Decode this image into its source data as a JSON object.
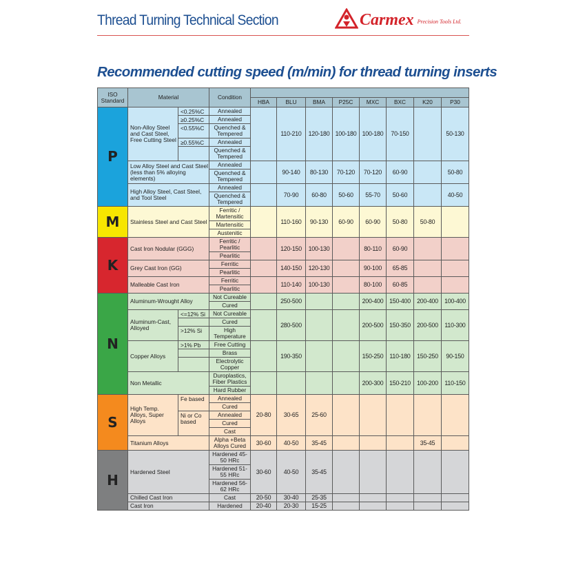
{
  "header": {
    "section_title": "Thread Turning Technical Section",
    "logo_brand": "Carmex",
    "logo_subtitle": "Precision Tools Ltd.",
    "heading": "Recommended cutting speed (m/min) for thread turning inserts"
  },
  "colors": {
    "title": "#1d4f91",
    "brand": "#d3232a",
    "header_bg": "#a8c5d1"
  },
  "table": {
    "headers": {
      "iso": "ISO Standard",
      "material": "Material",
      "condition": "Condition"
    },
    "grades": [
      "HBA",
      "BLU",
      "BMA",
      "P25C",
      "MXC",
      "BXC",
      "K20",
      "P30"
    ],
    "groups": [
      {
        "letter": "P",
        "color": "#1ba3dc",
        "bg": "#c9e7f6",
        "materials": [
          {
            "name": "Non-Alloy Steel and Cast Steel, Free Cutting Steel",
            "subs": [
              {
                "label": "<0.25%C",
                "conditions": [
                  "Annealed"
                ]
              },
              {
                "label": "≥0.25%C",
                "conditions": [
                  "Annealed"
                ]
              },
              {
                "label": "<0.55%C",
                "conditions": [
                  "Quenched & Tempered"
                ]
              },
              {
                "label": "≥0.55%C",
                "conditions": [
                  "Annealed"
                ]
              },
              {
                "label": "",
                "conditions": [
                  "Quenched & Tempered"
                ]
              }
            ],
            "speeds": [
              "",
              "110-210",
              "120-180",
              "100-180",
              "100-180",
              "70-150",
              "",
              "50-130"
            ]
          },
          {
            "name": "Low Alloy Steel and Cast Steel (less than 5% alloying elements)",
            "conditions": [
              "Annealed",
              "Quenched & Tempered"
            ],
            "speeds": [
              "",
              "90-140",
              "80-130",
              "70-120",
              "70-120",
              "60-90",
              "",
              "50-80"
            ]
          },
          {
            "name": "High Alloy Steel, Cast Steel, and Tool Steel",
            "conditions": [
              "Annealed",
              "Quenched & Tempered"
            ],
            "speeds": [
              "",
              "70-90",
              "60-80",
              "50-60",
              "55-70",
              "50-60",
              "",
              "40-50"
            ]
          }
        ]
      },
      {
        "letter": "M",
        "color": "#f7e600",
        "bg": "#fdf8d4",
        "materials": [
          {
            "name": "Stainless Steel and Cast Steel",
            "conditions": [
              "Ferritic / Martensitic",
              "Martensitic",
              "Austenitic"
            ],
            "speeds": [
              "",
              "110-160",
              "90-130",
              "60-90",
              "60-90",
              "50-80",
              "50-80",
              ""
            ]
          }
        ]
      },
      {
        "letter": "K",
        "color": "#d7262e",
        "bg": "#f2d0c9",
        "materials": [
          {
            "name": "Cast Iron Nodular (GGG)",
            "conditions": [
              "Ferritic / Pearlitic",
              "Pearlitic"
            ],
            "speeds": [
              "",
              "120-150",
              "100-130",
              "",
              "80-110",
              "60-90",
              "",
              ""
            ]
          },
          {
            "name": "Grey Cast Iron (GG)",
            "conditions": [
              "Ferritic",
              "Pearlitic"
            ],
            "speeds": [
              "",
              "140-150",
              "120-130",
              "",
              "90-100",
              "65-85",
              "",
              ""
            ]
          },
          {
            "name": "Malleable Cast Iron",
            "conditions": [
              "Ferritic",
              "Pearlitic"
            ],
            "speeds": [
              "",
              "110-140",
              "100-130",
              "",
              "80-100",
              "60-85",
              "",
              ""
            ]
          }
        ]
      },
      {
        "letter": "N",
        "color": "#3aa647",
        "bg": "#d2e8cd",
        "materials": [
          {
            "name": "Aluminum-Wrought Alloy",
            "conditions": [
              "Not Cureable",
              "Cured"
            ],
            "speeds": [
              "",
              "250-500",
              "",
              "",
              "200-400",
              "150-400",
              "200-400",
              "100-400"
            ]
          },
          {
            "name": "Aluminum-Cast, Alloyed",
            "subs": [
              {
                "label": "<=12% Si",
                "conditions": [
                  "Not Cureable"
                ]
              },
              {
                "label": "",
                "conditions": [
                  "Cured"
                ]
              },
              {
                "label": ">12% Si",
                "conditions": [
                  "High Temperature"
                ]
              }
            ],
            "speeds": [
              "",
              "280-500",
              "",
              "",
              "200-500",
              "150-350",
              "200-500",
              "110-300"
            ]
          },
          {
            "name": "Copper Alloys",
            "subs": [
              {
                "label": ">1% Pb",
                "conditions": [
                  "Free Cutting"
                ]
              },
              {
                "label": "",
                "conditions": [
                  "Brass"
                ]
              },
              {
                "label": "",
                "conditions": [
                  "Electrolytic Copper"
                ]
              }
            ],
            "speeds": [
              "",
              "190-350",
              "",
              "",
              "150-250",
              "110-180",
              "150-250",
              "90-150"
            ]
          },
          {
            "name": "Non Metallic",
            "conditions": [
              "Duroplastics, Fiber Plastics",
              "Hard Rubber"
            ],
            "speeds": [
              "",
              "",
              "",
              "",
              "200-300",
              "150-210",
              "100-200",
              "110-150"
            ]
          }
        ]
      },
      {
        "letter": "S",
        "color": "#f48a1e",
        "bg": "#fde3c8",
        "materials": [
          {
            "name": "High Temp. Alloys, Super Alloys",
            "subs": [
              {
                "label": "Fe based",
                "conditions": [
                  "Annealed",
                  "Cured"
                ]
              },
              {
                "label": "Ni or Co based",
                "conditions": [
                  "Annealed",
                  "Cured",
                  "Cast"
                ]
              }
            ],
            "speeds": [
              "20-80",
              "30-65",
              "25-60",
              "",
              "",
              "",
              "",
              ""
            ]
          },
          {
            "name": "Titanium Alloys",
            "conditions": [
              "Alpha +Beta Alloys Cured"
            ],
            "speeds": [
              "30-60",
              "40-50",
              "35-45",
              "",
              "",
              "",
              "35-45",
              ""
            ]
          }
        ]
      },
      {
        "letter": "H",
        "color": "#7e7f80",
        "bg": "#d5d6d8",
        "materials": [
          {
            "name": "Hardened Steel",
            "conditions": [
              "Hardened 45-50 HRc",
              "Hardened 51-55 HRc",
              "Hardened 56-62 HRc"
            ],
            "speeds": [
              "30-60",
              "40-50",
              "35-45",
              "",
              "",
              "",
              "",
              ""
            ]
          },
          {
            "name": "Chilled Cast Iron",
            "conditions": [
              "Cast"
            ],
            "speeds": [
              "20-50",
              "30-40",
              "25-35",
              "",
              "",
              "",
              "",
              ""
            ]
          },
          {
            "name": "Cast Iron",
            "conditions": [
              "Hardened"
            ],
            "speeds": [
              "20-40",
              "20-30",
              "15-25",
              "",
              "",
              "",
              "",
              ""
            ]
          }
        ]
      }
    ]
  }
}
